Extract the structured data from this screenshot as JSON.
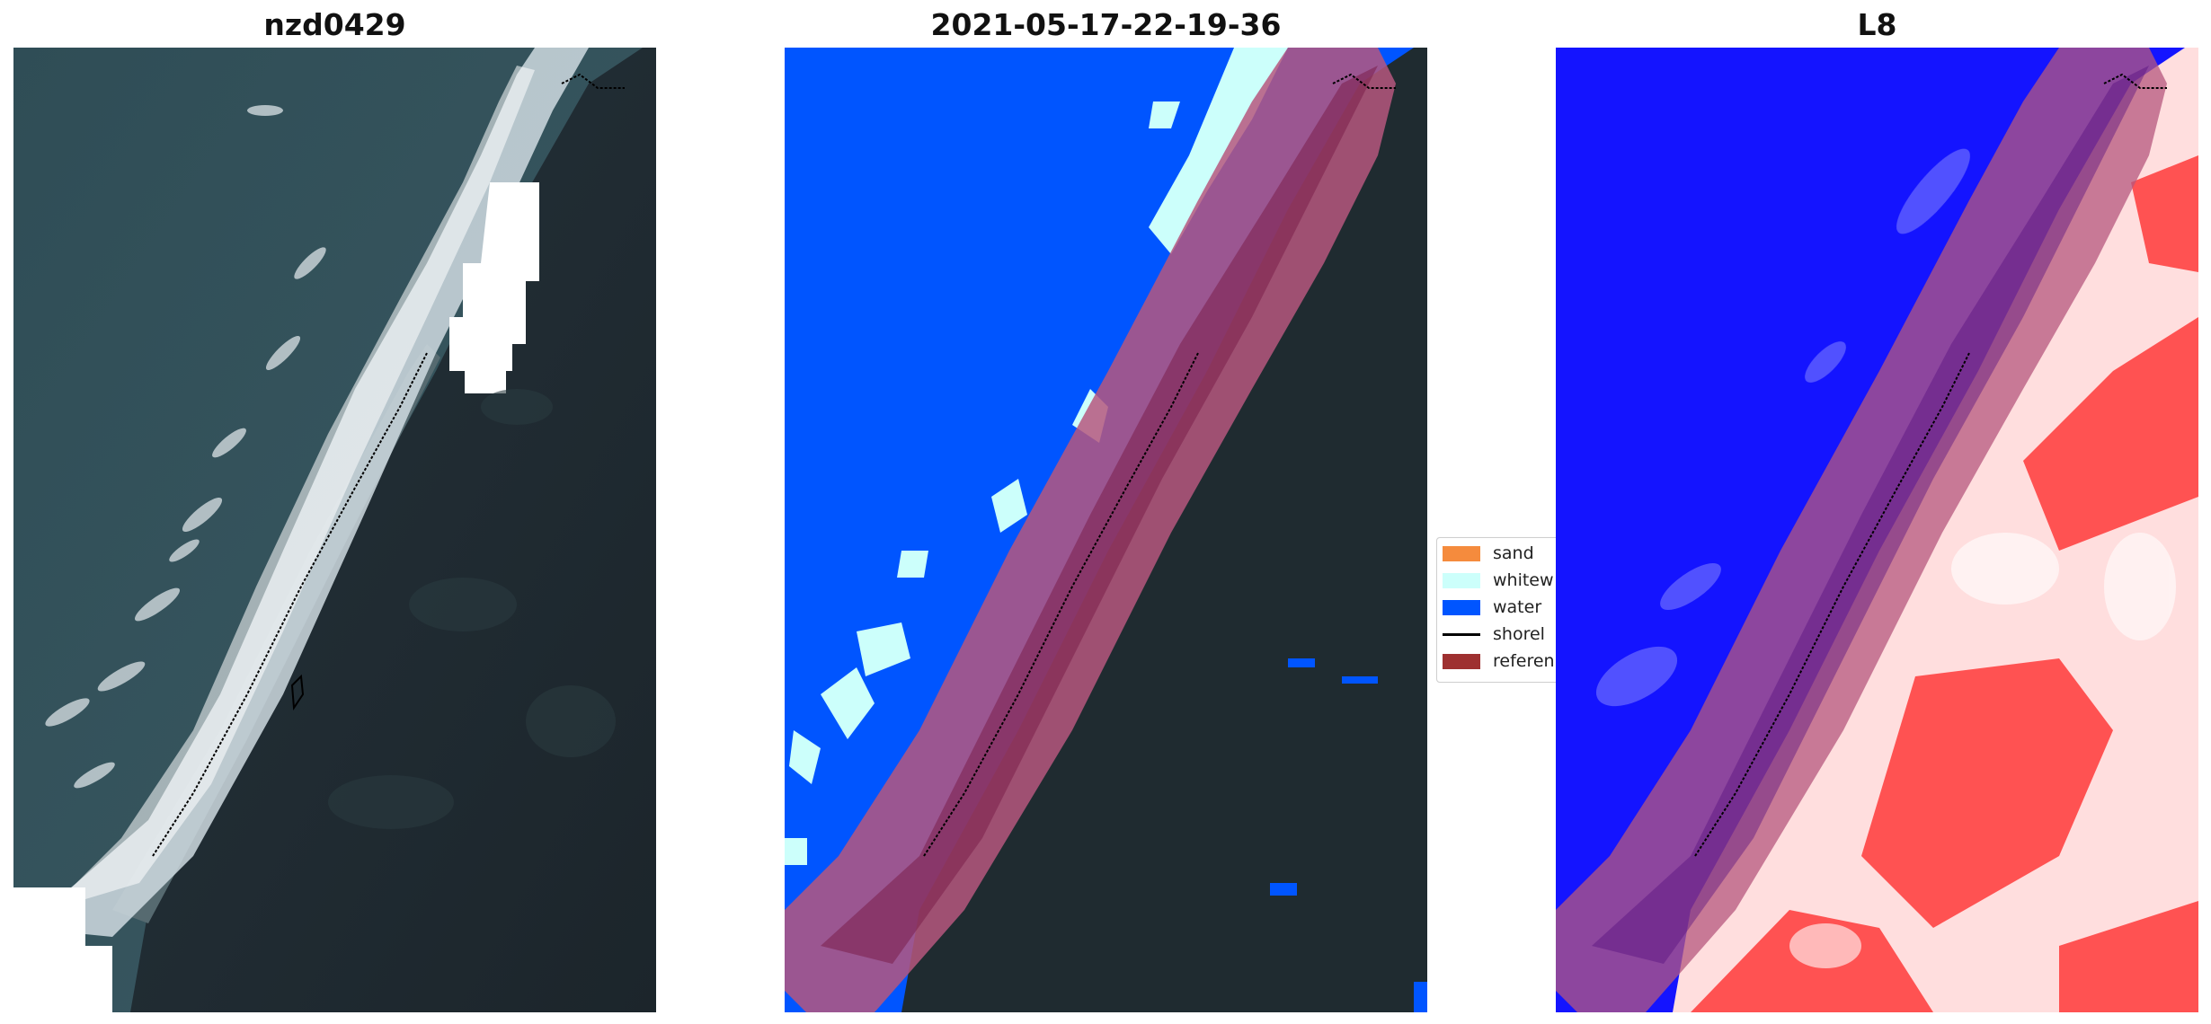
{
  "panels": [
    {
      "title": "nzd0429"
    },
    {
      "title": "2021-05-17-22-19-36"
    },
    {
      "title": "L8"
    }
  ],
  "legend": {
    "items": [
      {
        "label": "sand",
        "color": "#f58b3d",
        "kind": "patch"
      },
      {
        "label": "whitew",
        "color": "#ccfffb",
        "kind": "patch"
      },
      {
        "label": "water",
        "color": "#0055ff",
        "kind": "patch"
      },
      {
        "label": "shorel",
        "color": "#000000",
        "kind": "line"
      },
      {
        "label": "referen",
        "color": "#9e3030",
        "kind": "patch"
      }
    ]
  },
  "colors": {
    "ocean": "#2c4a52",
    "land": "#1f2b30",
    "surf": "#d9e4ea",
    "water_class": "#0055ff",
    "reference_buffer": "#b6577e",
    "index_blue": "#1414ff",
    "index_red": "#ff2a2a"
  }
}
